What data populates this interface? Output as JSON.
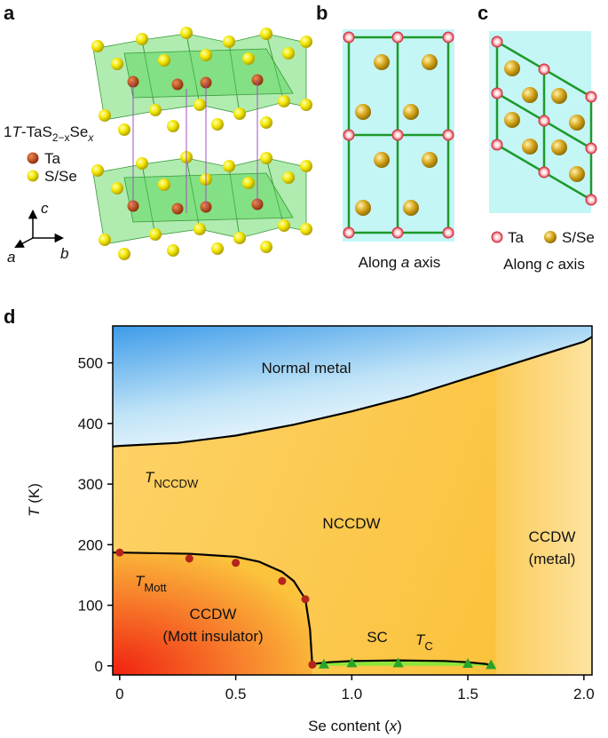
{
  "panels": {
    "a": {
      "label": "a",
      "formula": [
        "1",
        "T",
        "-TaS",
        "2−x",
        "Se",
        "x"
      ],
      "legend": [
        "Ta",
        "S/Se"
      ],
      "axes": [
        "c",
        "a",
        "b"
      ]
    },
    "b": {
      "label": "b",
      "caption": [
        "Along ",
        "a",
        " axis"
      ]
    },
    "c": {
      "label": "c",
      "caption": [
        "Along ",
        "c",
        " axis"
      ],
      "legend": [
        "Ta",
        "S/Se"
      ]
    }
  },
  "chart_data": {
    "type": "line",
    "label": "d",
    "x_label": [
      "Se content (",
      "x",
      ")"
    ],
    "y_label": [
      "T",
      " (K)"
    ],
    "xlim": [
      -0.03,
      2.035
    ],
    "ylim": [
      -15,
      561
    ],
    "xticks": [
      0,
      0.5,
      {
        "value": 1,
        "label": "1.0"
      },
      1.5,
      {
        "value": 2,
        "label": "2.0"
      }
    ],
    "yticks": [
      0,
      100,
      200,
      300,
      400,
      500
    ],
    "series": [
      {
        "style": "line",
        "color": "#000000",
        "x": [
          -0.03,
          0,
          0.25,
          0.5,
          0.75,
          1.0,
          1.25,
          1.5,
          1.75,
          2.0,
          2.035
        ],
        "values": [
          362,
          363,
          368,
          380,
          398,
          420,
          445,
          475,
          505,
          535,
          543
        ]
      },
      {
        "style": "line",
        "color": "#000000",
        "x": [
          -0.03,
          0,
          0.3,
          0.5,
          0.6,
          0.7,
          0.75,
          0.8,
          0.82,
          0.83
        ],
        "values": [
          187,
          187,
          185,
          180,
          172,
          155,
          140,
          110,
          60,
          0
        ]
      },
      {
        "style": "line",
        "color": "#000000",
        "x": [
          0.83,
          0.9,
          1.0,
          1.2,
          1.4,
          1.5,
          1.58,
          1.6
        ],
        "values": [
          3,
          6,
          8,
          9,
          8,
          6,
          3,
          0
        ]
      },
      {
        "style": "marker",
        "marker": "circle",
        "color": "#b5241c",
        "x": [
          0,
          0.3,
          0.5,
          0.7,
          0.8,
          0.83
        ],
        "values": [
          187,
          177,
          170,
          140,
          110,
          2
        ]
      },
      {
        "style": "marker",
        "marker": "triangle",
        "color": "#2aa329",
        "x": [
          0.88,
          1.0,
          1.2,
          1.5,
          1.6
        ],
        "values": [
          3,
          5,
          5,
          4,
          2
        ]
      }
    ],
    "annotations": [
      {
        "lines": [
          "Normal metal"
        ]
      },
      {
        "lines": [
          "T"
        ],
        "sub": "NCCDW"
      },
      {
        "lines": [
          "NCCDW"
        ]
      },
      {
        "lines": [
          "CCDW",
          "(metal)"
        ]
      },
      {
        "lines": [
          "T"
        ],
        "sub": "Mott"
      },
      {
        "lines": [
          "CCDW",
          "(Mott insulator)"
        ]
      },
      {
        "lines": [
          "SC"
        ]
      },
      {
        "lines": [
          "T"
        ],
        "sub": "C"
      }
    ]
  }
}
